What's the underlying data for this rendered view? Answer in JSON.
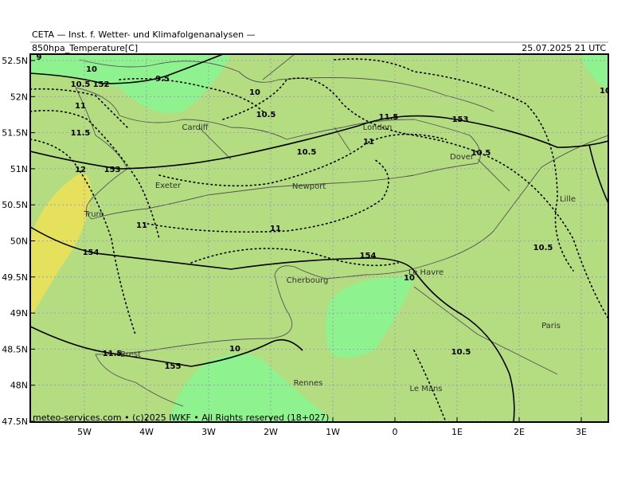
{
  "header": {
    "title": "CETA — Inst. f. Wetter- und Klimafolgenanalysen —",
    "product": "850hpa_Temperature[C]",
    "valid_time": "25.07.2025 21 UTC"
  },
  "lat_labels": [
    "52.5N",
    "52N",
    "51.5N",
    "51N",
    "50.5N",
    "50N",
    "49.5N",
    "49N",
    "48.5N",
    "48N",
    "47.5N"
  ],
  "lon_labels": [
    "5W",
    "4W",
    "3W",
    "2W",
    "1W",
    "0",
    "1E",
    "2E",
    "3E"
  ],
  "contour_labels": [
    "9",
    "10",
    "10.5",
    "152",
    "9.5",
    "10",
    "11",
    "10.5",
    "11.5",
    "153",
    "11.5",
    "11",
    "10.5",
    "10.5",
    "12",
    "153",
    "11",
    "11",
    "154",
    "154",
    "10.5",
    "10",
    "11.5",
    "155",
    "10",
    "10.5",
    "10"
  ],
  "places": [
    "Cardiff",
    "London",
    "Dover",
    "Exeter",
    "Newport",
    "Truro",
    "Lille",
    "Le Havre",
    "Cherbourg",
    "Paris",
    "Brest",
    "Rennes",
    "Le Mans"
  ],
  "footer": "meteo-services.com • (c)2025 IWKF • All Rights reserved (18+027)"
}
